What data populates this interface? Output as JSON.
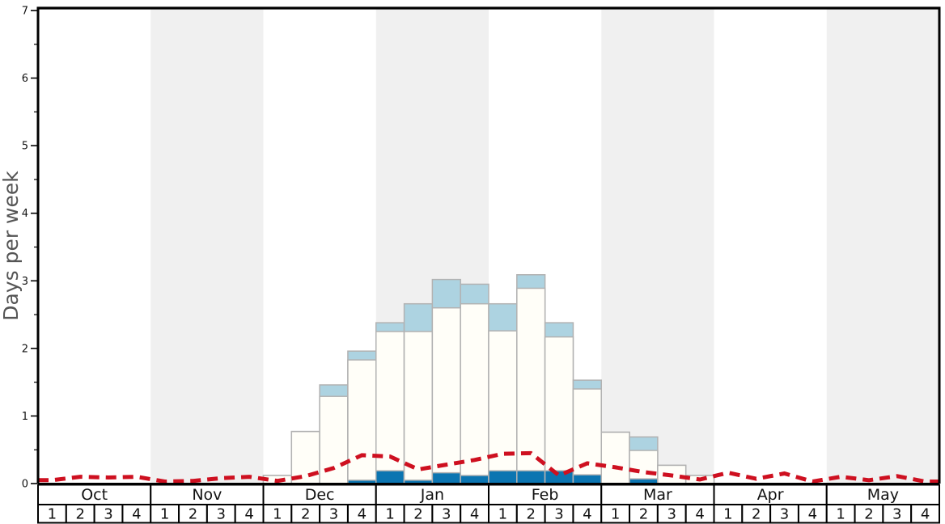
{
  "chart_data": {
    "type": "bar",
    "ylabel": "Days per week",
    "ylim": [
      0,
      7
    ],
    "yticks": [
      0,
      1,
      2,
      3,
      4,
      5,
      6,
      7
    ],
    "minor_tick_step": 0.5,
    "grid": false,
    "legend": "none",
    "months": [
      {
        "label": "Oct",
        "shaded": false
      },
      {
        "label": "Nov",
        "shaded": true
      },
      {
        "label": "Dec",
        "shaded": false
      },
      {
        "label": "Jan",
        "shaded": true
      },
      {
        "label": "Feb",
        "shaded": false
      },
      {
        "label": "Mar",
        "shaded": true
      },
      {
        "label": "Apr",
        "shaded": false
      },
      {
        "label": "May",
        "shaded": true
      }
    ],
    "week_labels": [
      "1",
      "2",
      "3",
      "4"
    ],
    "categories": [
      "Oct-1",
      "Oct-2",
      "Oct-3",
      "Oct-4",
      "Nov-1",
      "Nov-2",
      "Nov-3",
      "Nov-4",
      "Dec-1",
      "Dec-2",
      "Dec-3",
      "Dec-4",
      "Jan-1",
      "Jan-2",
      "Jan-3",
      "Jan-4",
      "Feb-1",
      "Feb-2",
      "Feb-3",
      "Feb-4",
      "Mar-1",
      "Mar-2",
      "Mar-3",
      "Mar-4",
      "Apr-1",
      "Apr-2",
      "Apr-3",
      "Apr-4",
      "May-1",
      "May-2",
      "May-3",
      "May-4"
    ],
    "series": [
      {
        "name": "dark-blue-bottom-segment-top",
        "render": "bar",
        "color_key": "dark_blue",
        "values": [
          0,
          0,
          0,
          0,
          0,
          0,
          0,
          0,
          0,
          0,
          0,
          0.05,
          0.19,
          0.05,
          0.16,
          0.12,
          0.19,
          0.19,
          0.19,
          0.13,
          0,
          0.07,
          0,
          0,
          0,
          0,
          0,
          0,
          0,
          0,
          0,
          0
        ]
      },
      {
        "name": "white-middle-segment-top",
        "render": "bar",
        "color_key": "bar_white",
        "values": [
          0,
          0,
          0,
          0,
          0,
          0,
          0,
          0,
          0.12,
          0.77,
          1.29,
          1.83,
          2.25,
          2.25,
          2.6,
          2.66,
          2.26,
          2.89,
          2.17,
          1.4,
          0.76,
          0.49,
          0.27,
          0.12,
          0,
          0,
          0,
          0,
          0,
          0,
          0,
          0
        ]
      },
      {
        "name": "light-blue-cap-segment-top",
        "render": "bar",
        "color_key": "light_blue",
        "values": [
          0,
          0,
          0,
          0,
          0,
          0,
          0,
          0,
          0.12,
          0.77,
          1.46,
          1.96,
          2.38,
          2.66,
          3.02,
          2.95,
          2.66,
          3.09,
          2.38,
          1.53,
          0.76,
          0.69,
          0.27,
          0.12,
          0,
          0,
          0,
          0,
          0,
          0,
          0,
          0
        ]
      },
      {
        "name": "red-dashed-line",
        "render": "dashed-line",
        "color_key": "line_red",
        "values": [
          0.05,
          0.1,
          0.09,
          0.1,
          0.03,
          0.04,
          0.08,
          0.1,
          0.04,
          0.11,
          0.23,
          0.42,
          0.4,
          0.21,
          0.28,
          0.35,
          0.44,
          0.45,
          0.12,
          0.3,
          0.24,
          0.17,
          0.12,
          0.06,
          0.16,
          0.07,
          0.15,
          0.03,
          0.1,
          0.05,
          0.11,
          0.03
        ]
      }
    ],
    "colors": {
      "dark_blue": "#0c75b1",
      "light_blue": "#add3e1",
      "bar_white": "#fffef8",
      "bar_border": "#b2b2b2",
      "line_red": "#ce1020",
      "band_gray": "#f0f0f0",
      "axis_black": "#000000",
      "ylabel_gray": "#555555",
      "tick_text": "#111111"
    }
  }
}
